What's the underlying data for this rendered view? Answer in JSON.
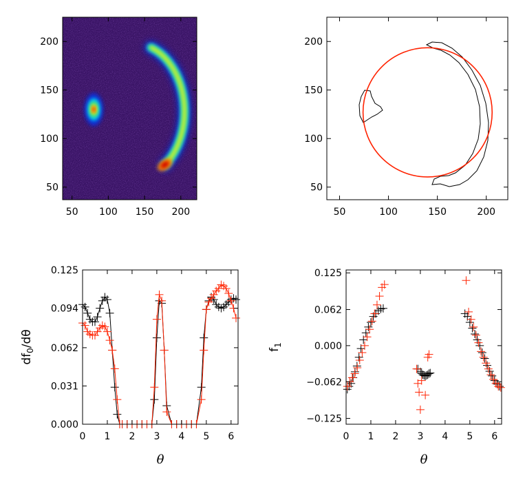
{
  "chart_data": [
    {
      "type": "heatmap",
      "xlim": [
        37,
        222
      ],
      "ylim": [
        37,
        225
      ],
      "xticks": [
        "50",
        "100",
        "150",
        "200"
      ],
      "yticks": [
        "50",
        "100",
        "150",
        "200"
      ],
      "colormap": [
        "#2a0a5c",
        "#0d2bd0",
        "#00c6ff",
        "#35e07a",
        "#f2f21a",
        "#ff8a00",
        "#cc0000"
      ],
      "background_color": "#3a1466",
      "features": [
        {
          "name": "spot",
          "cx": 80,
          "cy": 130,
          "intensity": 1.0
        },
        {
          "name": "arc",
          "center_x": 135,
          "center_y": 128,
          "radius": 70,
          "angle_start_deg": -52,
          "angle_end_deg": 70,
          "peak_x": 178,
          "peak_y": 73
        }
      ]
    },
    {
      "type": "line",
      "xlim": [
        37,
        222
      ],
      "ylim": [
        37,
        225
      ],
      "xticks": [
        "50",
        "100",
        "150",
        "200"
      ],
      "yticks": [
        "50",
        "100",
        "150",
        "200"
      ],
      "circle": {
        "cx": 140,
        "cy": 127,
        "r": 66,
        "color": "#ff2200"
      },
      "contour_color": "#000000"
    },
    {
      "type": "scatter",
      "xlabel": "θ",
      "ylabel": "df",
      "ylabel_sub": "0",
      "ylabel_suffix": "/dθ",
      "xlim": [
        0,
        6.2832
      ],
      "ylim": [
        0,
        0.125
      ],
      "xticks": [
        "0",
        "1",
        "2",
        "3",
        "4",
        "5",
        "6"
      ],
      "yticks": [
        "0.000",
        "0.031",
        "0.062",
        "0.094",
        "0.125"
      ],
      "series": [
        {
          "color": "#000000",
          "x": [
            0.0,
            0.1,
            0.2,
            0.3,
            0.4,
            0.5,
            0.6,
            0.7,
            0.8,
            0.9,
            1.0,
            1.1,
            1.2,
            1.3,
            1.4,
            1.5,
            1.6,
            1.8,
            2.0,
            2.2,
            2.4,
            2.6,
            2.8,
            2.9,
            3.0,
            3.1,
            3.2,
            3.3,
            3.4,
            3.6,
            3.8,
            4.0,
            4.2,
            4.4,
            4.6,
            4.8,
            4.9,
            5.0,
            5.1,
            5.2,
            5.3,
            5.4,
            5.5,
            5.6,
            5.7,
            5.8,
            5.9,
            6.0,
            6.1,
            6.2
          ],
          "y": [
            0.097,
            0.095,
            0.09,
            0.085,
            0.083,
            0.083,
            0.087,
            0.094,
            0.1,
            0.103,
            0.101,
            0.09,
            0.06,
            0.03,
            0.008,
            0.0,
            0.0,
            0.0,
            0.0,
            0.0,
            0.0,
            0.0,
            0.0,
            0.02,
            0.07,
            0.1,
            0.098,
            0.06,
            0.015,
            0.0,
            0.0,
            0.0,
            0.0,
            0.0,
            0.0,
            0.03,
            0.07,
            0.093,
            0.1,
            0.103,
            0.101,
            0.097,
            0.095,
            0.094,
            0.095,
            0.097,
            0.099,
            0.101,
            0.102,
            0.101
          ]
        },
        {
          "color": "#ff2200",
          "x": [
            0.0,
            0.1,
            0.2,
            0.3,
            0.4,
            0.5,
            0.6,
            0.7,
            0.8,
            0.9,
            1.0,
            1.1,
            1.2,
            1.3,
            1.4,
            1.5,
            1.6,
            1.8,
            2.0,
            2.2,
            2.4,
            2.6,
            2.8,
            2.9,
            3.0,
            3.1,
            3.2,
            3.3,
            3.4,
            3.6,
            3.8,
            4.0,
            4.2,
            4.4,
            4.6,
            4.8,
            4.9,
            5.0,
            5.1,
            5.2,
            5.3,
            5.4,
            5.5,
            5.6,
            5.7,
            5.8,
            5.9,
            6.0,
            6.1,
            6.2
          ],
          "y": [
            0.082,
            0.08,
            0.075,
            0.073,
            0.072,
            0.072,
            0.075,
            0.078,
            0.08,
            0.079,
            0.075,
            0.068,
            0.06,
            0.045,
            0.02,
            0.0,
            0.0,
            0.0,
            0.0,
            0.0,
            0.0,
            0.0,
            0.0,
            0.03,
            0.085,
            0.105,
            0.1,
            0.06,
            0.01,
            0.0,
            0.0,
            0.0,
            0.0,
            0.0,
            0.0,
            0.02,
            0.06,
            0.093,
            0.099,
            0.102,
            0.105,
            0.108,
            0.11,
            0.113,
            0.112,
            0.11,
            0.106,
            0.1,
            0.094,
            0.086
          ]
        }
      ]
    },
    {
      "type": "scatter",
      "xlabel": "θ",
      "ylabel": "f",
      "ylabel_sub": "1",
      "xlim": [
        0,
        6.2832
      ],
      "ylim": [
        -0.135,
        0.13
      ],
      "xticks": [
        "0",
        "1",
        "2",
        "3",
        "4",
        "5",
        "6"
      ],
      "ytick_values": [
        0.125,
        0.062,
        0.0,
        -0.062,
        -0.125
      ],
      "yticks": [
        "0.125",
        "0.062",
        "0.000",
        "−0.062",
        "−0.125"
      ],
      "series": [
        {
          "color": "#000000",
          "x": [
            0.05,
            0.12,
            0.2,
            0.28,
            0.36,
            0.44,
            0.52,
            0.6,
            0.7,
            0.8,
            0.9,
            1.0,
            1.1,
            1.2,
            1.3,
            1.4,
            1.5,
            2.9,
            3.0,
            3.05,
            3.1,
            3.15,
            3.2,
            3.25,
            3.3,
            3.35,
            3.4,
            4.8,
            4.9,
            5.0,
            5.1,
            5.2,
            5.3,
            5.4,
            5.5,
            5.6,
            5.7,
            5.8,
            5.9,
            6.0,
            6.1,
            6.2
          ],
          "y": [
            -0.075,
            -0.07,
            -0.065,
            -0.055,
            -0.045,
            -0.035,
            -0.02,
            -0.005,
            0.01,
            0.022,
            0.032,
            0.04,
            0.05,
            0.055,
            0.06,
            0.063,
            0.064,
            -0.04,
            -0.045,
            -0.048,
            -0.05,
            -0.051,
            -0.052,
            -0.051,
            -0.05,
            -0.048,
            -0.047,
            0.055,
            0.05,
            0.04,
            0.03,
            0.02,
            0.01,
            0.0,
            -0.012,
            -0.022,
            -0.034,
            -0.044,
            -0.052,
            -0.06,
            -0.066,
            -0.07
          ]
        },
        {
          "color": "#ff2200",
          "x": [
            0.05,
            0.15,
            0.25,
            0.35,
            0.45,
            0.55,
            0.65,
            0.75,
            0.85,
            0.95,
            1.05,
            1.15,
            1.25,
            1.35,
            1.45,
            1.55,
            2.85,
            2.9,
            2.95,
            3.0,
            3.05,
            3.2,
            3.3,
            3.35,
            4.85,
            4.95,
            5.05,
            5.15,
            5.25,
            5.35,
            5.45,
            5.55,
            5.65,
            5.75,
            5.85,
            5.95,
            6.05,
            6.15,
            6.25
          ],
          "y": [
            -0.07,
            -0.062,
            -0.055,
            -0.048,
            -0.038,
            -0.025,
            -0.012,
            0.0,
            0.015,
            0.028,
            0.042,
            0.055,
            0.07,
            0.085,
            0.1,
            0.105,
            -0.04,
            -0.065,
            -0.08,
            -0.11,
            -0.06,
            -0.085,
            -0.02,
            -0.015,
            0.112,
            0.058,
            0.045,
            0.032,
            0.018,
            0.005,
            -0.01,
            -0.02,
            -0.03,
            -0.04,
            -0.05,
            -0.058,
            -0.065,
            -0.07,
            -0.072
          ]
        }
      ]
    }
  ]
}
